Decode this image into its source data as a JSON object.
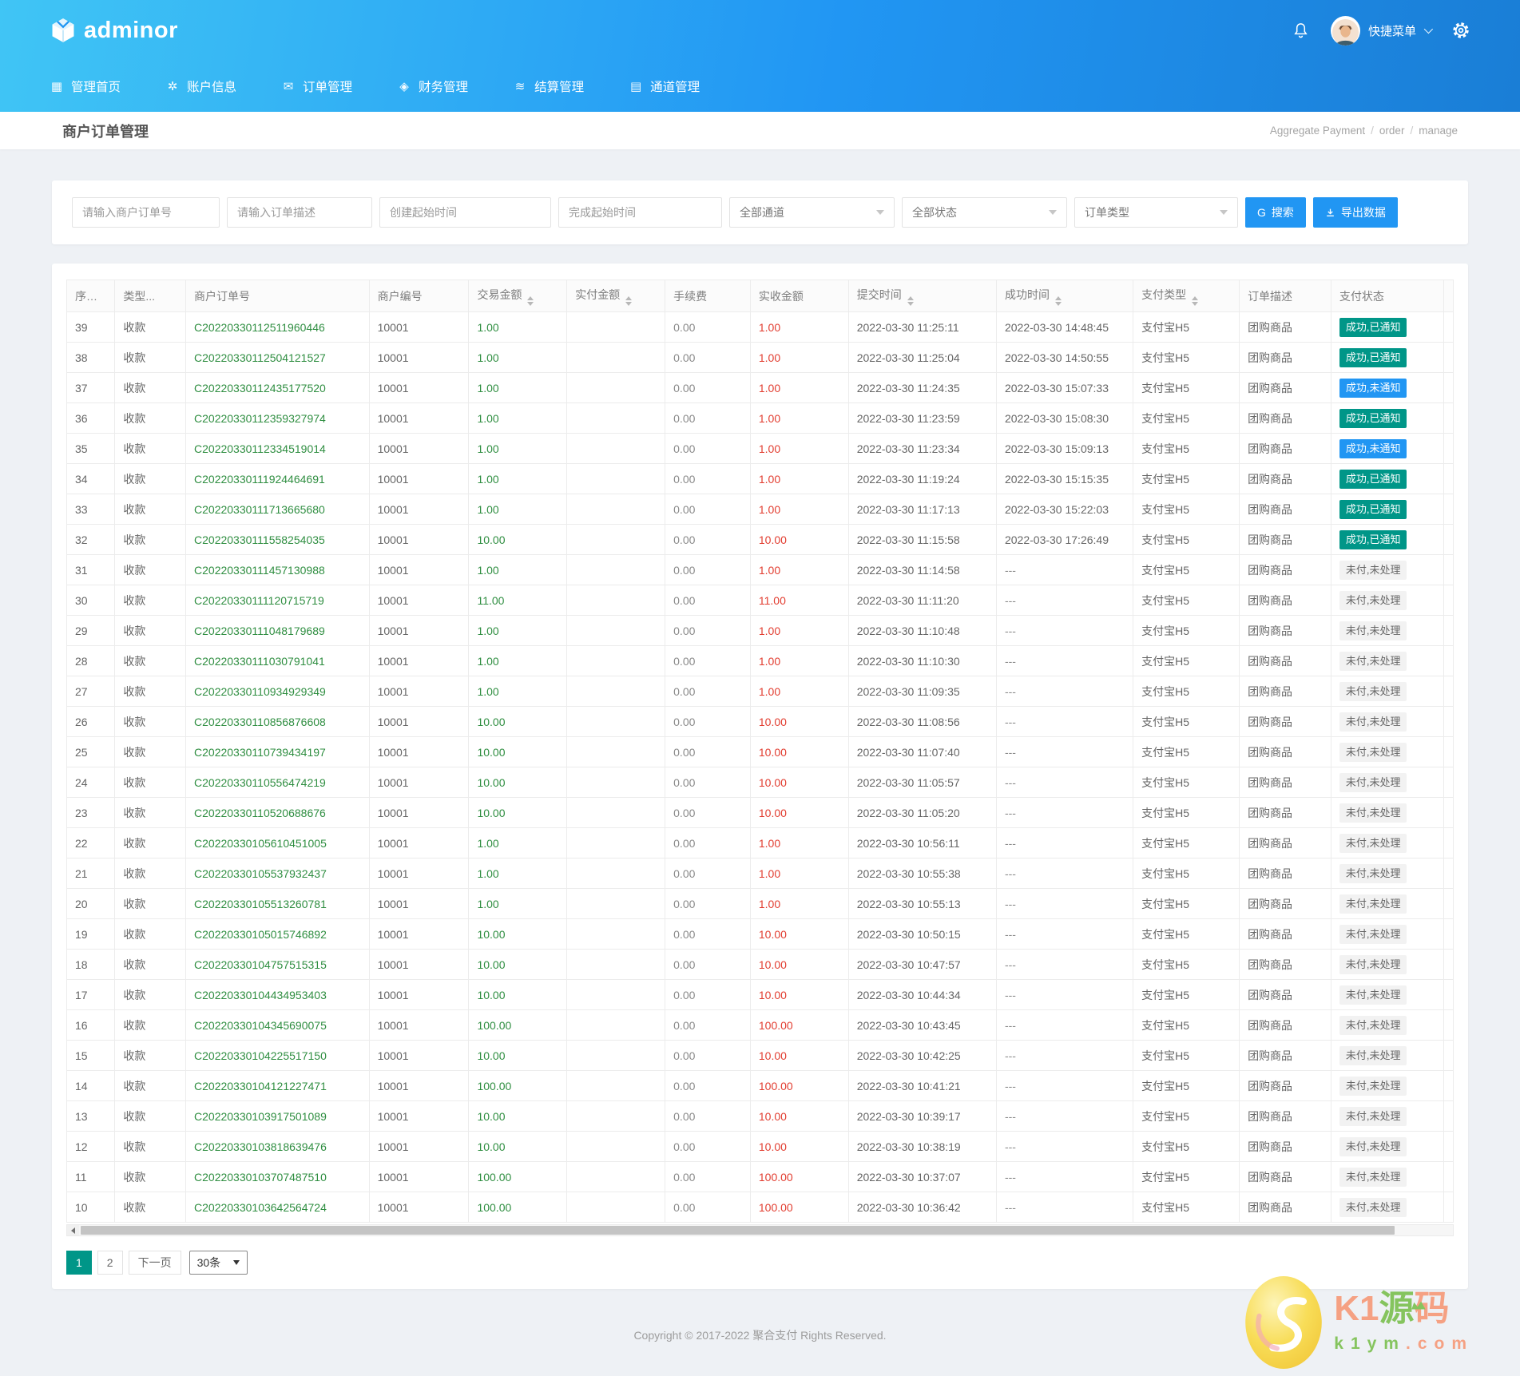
{
  "header": {
    "brand": "adminor",
    "nav": [
      "管理首页",
      "账户信息",
      "订单管理",
      "财务管理",
      "结算管理",
      "通道管理"
    ],
    "user_menu": "快捷菜单"
  },
  "page": {
    "title": "商户订单管理",
    "breadcrumb": [
      "Aggregate Payment",
      "order",
      "manage"
    ]
  },
  "filters": {
    "order_no_placeholder": "请输入商户订单号",
    "desc_placeholder": "请输入订单描述",
    "create_time_placeholder": "创建起始时间",
    "finish_time_placeholder": "完成起始时间",
    "channel_select": "全部通道",
    "status_select": "全部状态",
    "type_select": "订单类型",
    "search_icon_glyph": "G",
    "search_label": "搜索",
    "export_label": "导出数据"
  },
  "table": {
    "columns": [
      {
        "label": "序号...",
        "sortable": false
      },
      {
        "label": "类型...",
        "sortable": false
      },
      {
        "label": "商户订单号",
        "sortable": false
      },
      {
        "label": "商户编号",
        "sortable": false
      },
      {
        "label": "交易金额",
        "sortable": true
      },
      {
        "label": "实付金额",
        "sortable": true
      },
      {
        "label": "手续费",
        "sortable": false
      },
      {
        "label": "实收金额",
        "sortable": false
      },
      {
        "label": "提交时间",
        "sortable": true
      },
      {
        "label": "成功时间",
        "sortable": true
      },
      {
        "label": "支付类型",
        "sortable": true
      },
      {
        "label": "订单描述",
        "sortable": false
      },
      {
        "label": "支付状态",
        "sortable": false
      }
    ],
    "rows": [
      {
        "id": "39",
        "type": "收款",
        "order_no": "C20220330112511960446",
        "merchant_no": "10001",
        "amount": "1.00",
        "paid": "",
        "fee": "0.00",
        "received": "1.00",
        "submit_time": "2022-03-30 11:25:11",
        "success_time": "2022-03-30 14:48:45",
        "pay_type": "支付宝H5",
        "desc": "团购商品",
        "status": "成功,已通知",
        "status_kind": "notified"
      },
      {
        "id": "38",
        "type": "收款",
        "order_no": "C20220330112504121527",
        "merchant_no": "10001",
        "amount": "1.00",
        "paid": "",
        "fee": "0.00",
        "received": "1.00",
        "submit_time": "2022-03-30 11:25:04",
        "success_time": "2022-03-30 14:50:55",
        "pay_type": "支付宝H5",
        "desc": "团购商品",
        "status": "成功,已通知",
        "status_kind": "notified"
      },
      {
        "id": "37",
        "type": "收款",
        "order_no": "C20220330112435177520",
        "merchant_no": "10001",
        "amount": "1.00",
        "paid": "",
        "fee": "0.00",
        "received": "1.00",
        "submit_time": "2022-03-30 11:24:35",
        "success_time": "2022-03-30 15:07:33",
        "pay_type": "支付宝H5",
        "desc": "团购商品",
        "status": "成功,未通知",
        "status_kind": "unnotified"
      },
      {
        "id": "36",
        "type": "收款",
        "order_no": "C20220330112359327974",
        "merchant_no": "10001",
        "amount": "1.00",
        "paid": "",
        "fee": "0.00",
        "received": "1.00",
        "submit_time": "2022-03-30 11:23:59",
        "success_time": "2022-03-30 15:08:30",
        "pay_type": "支付宝H5",
        "desc": "团购商品",
        "status": "成功,已通知",
        "status_kind": "notified"
      },
      {
        "id": "35",
        "type": "收款",
        "order_no": "C20220330112334519014",
        "merchant_no": "10001",
        "amount": "1.00",
        "paid": "",
        "fee": "0.00",
        "received": "1.00",
        "submit_time": "2022-03-30 11:23:34",
        "success_time": "2022-03-30 15:09:13",
        "pay_type": "支付宝H5",
        "desc": "团购商品",
        "status": "成功,未通知",
        "status_kind": "unnotified"
      },
      {
        "id": "34",
        "type": "收款",
        "order_no": "C20220330111924464691",
        "merchant_no": "10001",
        "amount": "1.00",
        "paid": "",
        "fee": "0.00",
        "received": "1.00",
        "submit_time": "2022-03-30 11:19:24",
        "success_time": "2022-03-30 15:15:35",
        "pay_type": "支付宝H5",
        "desc": "团购商品",
        "status": "成功,已通知",
        "status_kind": "notified"
      },
      {
        "id": "33",
        "type": "收款",
        "order_no": "C20220330111713665680",
        "merchant_no": "10001",
        "amount": "1.00",
        "paid": "",
        "fee": "0.00",
        "received": "1.00",
        "submit_time": "2022-03-30 11:17:13",
        "success_time": "2022-03-30 15:22:03",
        "pay_type": "支付宝H5",
        "desc": "团购商品",
        "status": "成功,已通知",
        "status_kind": "notified"
      },
      {
        "id": "32",
        "type": "收款",
        "order_no": "C20220330111558254035",
        "merchant_no": "10001",
        "amount": "10.00",
        "paid": "",
        "fee": "0.00",
        "received": "10.00",
        "submit_time": "2022-03-30 11:15:58",
        "success_time": "2022-03-30 17:26:49",
        "pay_type": "支付宝H5",
        "desc": "团购商品",
        "status": "成功,已通知",
        "status_kind": "notified"
      },
      {
        "id": "31",
        "type": "收款",
        "order_no": "C20220330111457130988",
        "merchant_no": "10001",
        "amount": "1.00",
        "paid": "",
        "fee": "0.00",
        "received": "1.00",
        "submit_time": "2022-03-30 11:14:58",
        "success_time": "---",
        "pay_type": "支付宝H5",
        "desc": "团购商品",
        "status": "未付,未处理",
        "status_kind": "unpaid"
      },
      {
        "id": "30",
        "type": "收款",
        "order_no": "C20220330111120715719",
        "merchant_no": "10001",
        "amount": "11.00",
        "paid": "",
        "fee": "0.00",
        "received": "11.00",
        "submit_time": "2022-03-30 11:11:20",
        "success_time": "---",
        "pay_type": "支付宝H5",
        "desc": "团购商品",
        "status": "未付,未处理",
        "status_kind": "unpaid"
      },
      {
        "id": "29",
        "type": "收款",
        "order_no": "C20220330111048179689",
        "merchant_no": "10001",
        "amount": "1.00",
        "paid": "",
        "fee": "0.00",
        "received": "1.00",
        "submit_time": "2022-03-30 11:10:48",
        "success_time": "---",
        "pay_type": "支付宝H5",
        "desc": "团购商品",
        "status": "未付,未处理",
        "status_kind": "unpaid"
      },
      {
        "id": "28",
        "type": "收款",
        "order_no": "C20220330111030791041",
        "merchant_no": "10001",
        "amount": "1.00",
        "paid": "",
        "fee": "0.00",
        "received": "1.00",
        "submit_time": "2022-03-30 11:10:30",
        "success_time": "---",
        "pay_type": "支付宝H5",
        "desc": "团购商品",
        "status": "未付,未处理",
        "status_kind": "unpaid"
      },
      {
        "id": "27",
        "type": "收款",
        "order_no": "C20220330110934929349",
        "merchant_no": "10001",
        "amount": "1.00",
        "paid": "",
        "fee": "0.00",
        "received": "1.00",
        "submit_time": "2022-03-30 11:09:35",
        "success_time": "---",
        "pay_type": "支付宝H5",
        "desc": "团购商品",
        "status": "未付,未处理",
        "status_kind": "unpaid"
      },
      {
        "id": "26",
        "type": "收款",
        "order_no": "C20220330110856876608",
        "merchant_no": "10001",
        "amount": "10.00",
        "paid": "",
        "fee": "0.00",
        "received": "10.00",
        "submit_time": "2022-03-30 11:08:56",
        "success_time": "---",
        "pay_type": "支付宝H5",
        "desc": "团购商品",
        "status": "未付,未处理",
        "status_kind": "unpaid"
      },
      {
        "id": "25",
        "type": "收款",
        "order_no": "C20220330110739434197",
        "merchant_no": "10001",
        "amount": "10.00",
        "paid": "",
        "fee": "0.00",
        "received": "10.00",
        "submit_time": "2022-03-30 11:07:40",
        "success_time": "---",
        "pay_type": "支付宝H5",
        "desc": "团购商品",
        "status": "未付,未处理",
        "status_kind": "unpaid"
      },
      {
        "id": "24",
        "type": "收款",
        "order_no": "C20220330110556474219",
        "merchant_no": "10001",
        "amount": "10.00",
        "paid": "",
        "fee": "0.00",
        "received": "10.00",
        "submit_time": "2022-03-30 11:05:57",
        "success_time": "---",
        "pay_type": "支付宝H5",
        "desc": "团购商品",
        "status": "未付,未处理",
        "status_kind": "unpaid"
      },
      {
        "id": "23",
        "type": "收款",
        "order_no": "C20220330110520688676",
        "merchant_no": "10001",
        "amount": "10.00",
        "paid": "",
        "fee": "0.00",
        "received": "10.00",
        "submit_time": "2022-03-30 11:05:20",
        "success_time": "---",
        "pay_type": "支付宝H5",
        "desc": "团购商品",
        "status": "未付,未处理",
        "status_kind": "unpaid"
      },
      {
        "id": "22",
        "type": "收款",
        "order_no": "C20220330105610451005",
        "merchant_no": "10001",
        "amount": "1.00",
        "paid": "",
        "fee": "0.00",
        "received": "1.00",
        "submit_time": "2022-03-30 10:56:11",
        "success_time": "---",
        "pay_type": "支付宝H5",
        "desc": "团购商品",
        "status": "未付,未处理",
        "status_kind": "unpaid"
      },
      {
        "id": "21",
        "type": "收款",
        "order_no": "C20220330105537932437",
        "merchant_no": "10001",
        "amount": "1.00",
        "paid": "",
        "fee": "0.00",
        "received": "1.00",
        "submit_time": "2022-03-30 10:55:38",
        "success_time": "---",
        "pay_type": "支付宝H5",
        "desc": "团购商品",
        "status": "未付,未处理",
        "status_kind": "unpaid"
      },
      {
        "id": "20",
        "type": "收款",
        "order_no": "C20220330105513260781",
        "merchant_no": "10001",
        "amount": "1.00",
        "paid": "",
        "fee": "0.00",
        "received": "1.00",
        "submit_time": "2022-03-30 10:55:13",
        "success_time": "---",
        "pay_type": "支付宝H5",
        "desc": "团购商品",
        "status": "未付,未处理",
        "status_kind": "unpaid"
      },
      {
        "id": "19",
        "type": "收款",
        "order_no": "C20220330105015746892",
        "merchant_no": "10001",
        "amount": "10.00",
        "paid": "",
        "fee": "0.00",
        "received": "10.00",
        "submit_time": "2022-03-30 10:50:15",
        "success_time": "---",
        "pay_type": "支付宝H5",
        "desc": "团购商品",
        "status": "未付,未处理",
        "status_kind": "unpaid"
      },
      {
        "id": "18",
        "type": "收款",
        "order_no": "C20220330104757515315",
        "merchant_no": "10001",
        "amount": "10.00",
        "paid": "",
        "fee": "0.00",
        "received": "10.00",
        "submit_time": "2022-03-30 10:47:57",
        "success_time": "---",
        "pay_type": "支付宝H5",
        "desc": "团购商品",
        "status": "未付,未处理",
        "status_kind": "unpaid"
      },
      {
        "id": "17",
        "type": "收款",
        "order_no": "C20220330104434953403",
        "merchant_no": "10001",
        "amount": "10.00",
        "paid": "",
        "fee": "0.00",
        "received": "10.00",
        "submit_time": "2022-03-30 10:44:34",
        "success_time": "---",
        "pay_type": "支付宝H5",
        "desc": "团购商品",
        "status": "未付,未处理",
        "status_kind": "unpaid"
      },
      {
        "id": "16",
        "type": "收款",
        "order_no": "C20220330104345690075",
        "merchant_no": "10001",
        "amount": "100.00",
        "paid": "",
        "fee": "0.00",
        "received": "100.00",
        "submit_time": "2022-03-30 10:43:45",
        "success_time": "---",
        "pay_type": "支付宝H5",
        "desc": "团购商品",
        "status": "未付,未处理",
        "status_kind": "unpaid"
      },
      {
        "id": "15",
        "type": "收款",
        "order_no": "C20220330104225517150",
        "merchant_no": "10001",
        "amount": "10.00",
        "paid": "",
        "fee": "0.00",
        "received": "10.00",
        "submit_time": "2022-03-30 10:42:25",
        "success_time": "---",
        "pay_type": "支付宝H5",
        "desc": "团购商品",
        "status": "未付,未处理",
        "status_kind": "unpaid"
      },
      {
        "id": "14",
        "type": "收款",
        "order_no": "C20220330104121227471",
        "merchant_no": "10001",
        "amount": "100.00",
        "paid": "",
        "fee": "0.00",
        "received": "100.00",
        "submit_time": "2022-03-30 10:41:21",
        "success_time": "---",
        "pay_type": "支付宝H5",
        "desc": "团购商品",
        "status": "未付,未处理",
        "status_kind": "unpaid"
      },
      {
        "id": "13",
        "type": "收款",
        "order_no": "C20220330103917501089",
        "merchant_no": "10001",
        "amount": "10.00",
        "paid": "",
        "fee": "0.00",
        "received": "10.00",
        "submit_time": "2022-03-30 10:39:17",
        "success_time": "---",
        "pay_type": "支付宝H5",
        "desc": "团购商品",
        "status": "未付,未处理",
        "status_kind": "unpaid"
      },
      {
        "id": "12",
        "type": "收款",
        "order_no": "C20220330103818639476",
        "merchant_no": "10001",
        "amount": "10.00",
        "paid": "",
        "fee": "0.00",
        "received": "10.00",
        "submit_time": "2022-03-30 10:38:19",
        "success_time": "---",
        "pay_type": "支付宝H5",
        "desc": "团购商品",
        "status": "未付,未处理",
        "status_kind": "unpaid"
      },
      {
        "id": "11",
        "type": "收款",
        "order_no": "C20220330103707487510",
        "merchant_no": "10001",
        "amount": "100.00",
        "paid": "",
        "fee": "0.00",
        "received": "100.00",
        "submit_time": "2022-03-30 10:37:07",
        "success_time": "---",
        "pay_type": "支付宝H5",
        "desc": "团购商品",
        "status": "未付,未处理",
        "status_kind": "unpaid"
      },
      {
        "id": "10",
        "type": "收款",
        "order_no": "C20220330103642564724",
        "merchant_no": "10001",
        "amount": "100.00",
        "paid": "",
        "fee": "0.00",
        "received": "100.00",
        "submit_time": "2022-03-30 10:36:42",
        "success_time": "---",
        "pay_type": "支付宝H5",
        "desc": "团购商品",
        "status": "未付,未处理",
        "status_kind": "unpaid"
      }
    ]
  },
  "pagination": {
    "pages": [
      "1",
      "2"
    ],
    "current": "1",
    "next_label": "下一页",
    "page_size": "30条"
  },
  "footer": {
    "copyright": "Copyright © 2017-2022 聚合支付 Rights Reserved."
  },
  "watermark": {
    "t1": "K1",
    "t2": "源",
    "t3": "码",
    "s1": "k1ym",
    "s2": ".com"
  },
  "colors": {
    "header_gradient_start": "#40c5f5",
    "header_gradient_end": "#1a7ed6",
    "primary_blue": "#2196f3",
    "teal": "#009688",
    "green_text": "#2f8e41",
    "red_text": "#e23d30"
  }
}
